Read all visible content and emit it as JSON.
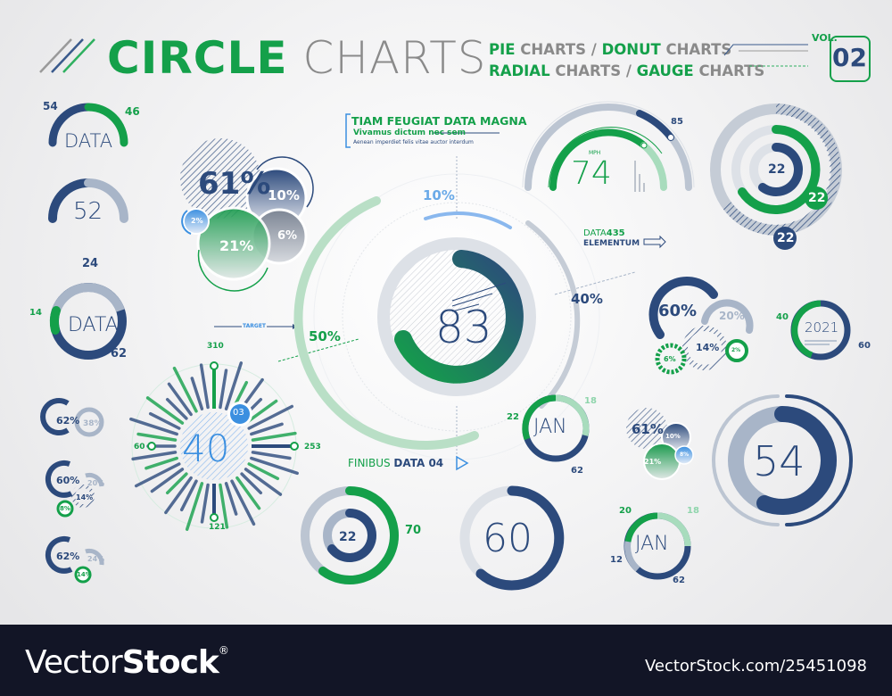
{
  "header": {
    "title_bold": "CIRCLE",
    "title_light": "CHARTS",
    "subtitle_line1": [
      {
        "text": "PIE",
        "accent": true
      },
      {
        "text": " CHARTS / ",
        "accent": false
      },
      {
        "text": "DONUT",
        "accent": true
      },
      {
        "text": " CHARTS",
        "accent": false
      }
    ],
    "subtitle_line2": [
      {
        "text": "RADIAL",
        "accent": true
      },
      {
        "text": " CHARTS / ",
        "accent": false
      },
      {
        "text": "GAUGE",
        "accent": true
      },
      {
        "text": " CHARTS",
        "accent": false
      }
    ],
    "s1a": "PIE",
    "s1b": " CHARTS / ",
    "s1c": "DONUT",
    "s1d": " CHARTS",
    "s2a": "RADIAL",
    "s2b": " CHARTS / ",
    "s2c": "GAUGE",
    "s2d": " CHARTS",
    "vol_label": "VOL.",
    "vol_number": "02"
  },
  "colors": {
    "navy": "#2c4a7c",
    "green": "#14a04a",
    "light_grey_blue": "#a8b5c8",
    "mint": "#8fd5ac",
    "blue": "#3b8fe0",
    "footer_bg": "#121526"
  },
  "callout": {
    "title": "TIAM FEUGIAT DATA MAGNA",
    "subtitle": "Vivamus dictum nec sem",
    "body": "Aenean imperdiet felis vitae auctor interdum"
  },
  "labels": {
    "data435_prefix": "DATA",
    "data435_num": "435",
    "elementum": "ELEMENTUM",
    "target": "TARGET",
    "finibus": "FINIBUS",
    "finibus_data": "DATA 04",
    "mph": "MPH"
  },
  "footer": {
    "logo_light": "Vector",
    "logo_bold": "Stock",
    "logo_mark": "®",
    "url": "VectorStock.com/25451098"
  },
  "chart_data": [
    {
      "type": "pie",
      "id": "half-gauge-data",
      "title": "DATA",
      "series": [
        {
          "name": "navy",
          "value": 54
        },
        {
          "name": "green",
          "value": 46
        }
      ],
      "labels": [
        "54",
        "46"
      ]
    },
    {
      "type": "pie",
      "id": "half-gauge-52",
      "center": "52",
      "values": [
        52,
        48
      ]
    },
    {
      "type": "pie",
      "id": "donut-data",
      "title": "DATA",
      "labels": [
        "24",
        "14",
        "62"
      ],
      "values": [
        24,
        14,
        62
      ]
    },
    {
      "type": "pie",
      "id": "small-donut-62-38",
      "labels": [
        "62%",
        "38%"
      ],
      "values": [
        62,
        38
      ]
    },
    {
      "type": "pie",
      "id": "small-donut-60-20-14-8",
      "labels": [
        "60%",
        "20%",
        "14%",
        "8%"
      ],
      "values": [
        60,
        20,
        14,
        8
      ]
    },
    {
      "type": "pie",
      "id": "small-donut-62-24-14",
      "labels": [
        "62%",
        "24%",
        "14%"
      ],
      "values": [
        62,
        24,
        14
      ]
    },
    {
      "type": "pie",
      "id": "bubbles-large",
      "labels": [
        "61%",
        "10%",
        "6%",
        "21%",
        "2%"
      ],
      "values": [
        61,
        10,
        6,
        21,
        2
      ]
    },
    {
      "type": "pie",
      "id": "radial-bars-40",
      "center": "40",
      "badge": "03",
      "markers": [
        "310",
        "253",
        "121",
        "60"
      ]
    },
    {
      "type": "pie",
      "id": "main-donut-83",
      "center": "83",
      "outer_labels": [
        "10%",
        "40%",
        "50%"
      ],
      "values": [
        10,
        40,
        50
      ]
    },
    {
      "type": "pie",
      "id": "speed-gauge",
      "center": "74",
      "unit": "MPH",
      "max_label": "85"
    },
    {
      "type": "pie",
      "id": "concentric-22",
      "labels": [
        "22",
        "22",
        "22"
      ],
      "values": [
        22,
        22,
        22
      ]
    },
    {
      "type": "pie",
      "id": "bubble-arcs",
      "labels": [
        "60%",
        "20%",
        "14%",
        "6%",
        "2%"
      ],
      "values": [
        60,
        20,
        14,
        6,
        2
      ]
    },
    {
      "type": "pie",
      "id": "donut-2021",
      "center": "2021",
      "labels": [
        "40",
        "60"
      ],
      "values": [
        40,
        60
      ]
    },
    {
      "type": "pie",
      "id": "donut-jan-1",
      "center": "JAN",
      "labels": [
        "22",
        "18",
        "62"
      ],
      "values": [
        22,
        18,
        62
      ]
    },
    {
      "type": "pie",
      "id": "bubbles-small",
      "labels": [
        "61%",
        "10%",
        "8%",
        "21%"
      ],
      "values": [
        61,
        10,
        8,
        21
      ]
    },
    {
      "type": "pie",
      "id": "donut-54",
      "center": "54",
      "values": [
        54,
        46
      ]
    },
    {
      "type": "pie",
      "id": "double-donut-22-70",
      "labels": [
        "22",
        "70"
      ],
      "values": [
        22,
        70
      ]
    },
    {
      "type": "pie",
      "id": "donut-60",
      "center": "60",
      "values": [
        60,
        40
      ]
    },
    {
      "type": "pie",
      "id": "donut-jan-2",
      "center": "JAN",
      "labels": [
        "20",
        "18",
        "12",
        "62"
      ],
      "values": [
        20,
        18,
        12,
        62
      ]
    }
  ]
}
